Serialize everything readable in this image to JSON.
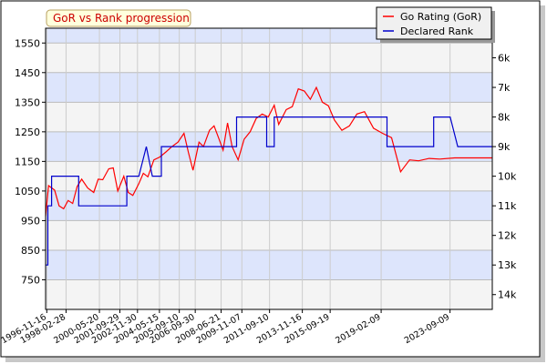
{
  "chart_data": {
    "type": "line",
    "title": "GoR vs Rank progression",
    "legend_placement": "top-right",
    "grid": true,
    "band_colors": {
      "light": "#f4f4f4",
      "blue": "#dde5fc"
    },
    "left_axis": {
      "ticks": [
        750,
        850,
        950,
        1050,
        1150,
        1250,
        1350,
        1450,
        1550
      ],
      "range": [
        650,
        1600
      ]
    },
    "right_axis": {
      "ticks": [
        {
          "label": "6k",
          "value": 1500
        },
        {
          "label": "7k",
          "value": 1400
        },
        {
          "label": "8k",
          "value": 1300
        },
        {
          "label": "9k",
          "value": 1200
        },
        {
          "label": "10k",
          "value": 1100
        },
        {
          "label": "11k",
          "value": 1000
        },
        {
          "label": "12k",
          "value": 900
        },
        {
          "label": "13k",
          "value": 800
        },
        {
          "label": "14k",
          "value": 700
        }
      ]
    },
    "x_axis": {
      "range": [
        1996.8,
        2026.5
      ],
      "tick_labels": [
        {
          "label": "1996-11-16",
          "year": 1996.88
        },
        {
          "label": "1998-02-28",
          "year": 1998.16
        },
        {
          "label": "2000-05-20",
          "year": 2000.38
        },
        {
          "label": "2001-09-29",
          "year": 2001.74
        },
        {
          "label": "2002-11-30",
          "year": 2002.91
        },
        {
          "label": "2004-05-15",
          "year": 2004.37
        },
        {
          "label": "2005-09-10",
          "year": 2005.69
        },
        {
          "label": "2006-09-30",
          "year": 2006.75
        },
        {
          "label": "2008-06-21",
          "year": 2008.47
        },
        {
          "label": "2009-11-07",
          "year": 2009.85
        },
        {
          "label": "2011-09-10",
          "year": 2011.69
        },
        {
          "label": "2013-11-16",
          "year": 2013.87
        },
        {
          "label": "2015-09-19",
          "year": 2015.72
        },
        {
          "label": "2019-02-09",
          "year": 2019.11
        },
        {
          "label": "2023-09-09",
          "year": 2023.69
        }
      ]
    },
    "series": [
      {
        "name": "Go Rating (GoR)",
        "color": "#ff0000",
        "points": [
          [
            1996.8,
            965
          ],
          [
            1997.0,
            1068
          ],
          [
            1997.4,
            1053
          ],
          [
            1997.7,
            1000
          ],
          [
            1998.0,
            990
          ],
          [
            1998.3,
            1018
          ],
          [
            1998.6,
            1008
          ],
          [
            1998.9,
            1065
          ],
          [
            1999.2,
            1090
          ],
          [
            1999.6,
            1060
          ],
          [
            2000.0,
            1045
          ],
          [
            2000.3,
            1090
          ],
          [
            2000.6,
            1088
          ],
          [
            2001.0,
            1125
          ],
          [
            2001.3,
            1128
          ],
          [
            2001.6,
            1050
          ],
          [
            2002.0,
            1100
          ],
          [
            2002.3,
            1045
          ],
          [
            2002.6,
            1035
          ],
          [
            2003.0,
            1075
          ],
          [
            2003.3,
            1110
          ],
          [
            2003.6,
            1098
          ],
          [
            2004.0,
            1155
          ],
          [
            2004.4,
            1165
          ],
          [
            2004.8,
            1182
          ],
          [
            2005.2,
            1200
          ],
          [
            2005.6,
            1215
          ],
          [
            2006.0,
            1245
          ],
          [
            2006.3,
            1180
          ],
          [
            2006.6,
            1120
          ],
          [
            2007.0,
            1215
          ],
          [
            2007.3,
            1200
          ],
          [
            2007.7,
            1255
          ],
          [
            2008.0,
            1270
          ],
          [
            2008.3,
            1230
          ],
          [
            2008.6,
            1188
          ],
          [
            2008.9,
            1280
          ],
          [
            2009.2,
            1200
          ],
          [
            2009.6,
            1155
          ],
          [
            2010.0,
            1225
          ],
          [
            2010.4,
            1250
          ],
          [
            2010.8,
            1295
          ],
          [
            2011.2,
            1310
          ],
          [
            2011.6,
            1300
          ],
          [
            2012.0,
            1340
          ],
          [
            2012.3,
            1275
          ],
          [
            2012.8,
            1325
          ],
          [
            2013.2,
            1335
          ],
          [
            2013.6,
            1395
          ],
          [
            2014.0,
            1388
          ],
          [
            2014.4,
            1360
          ],
          [
            2014.8,
            1400
          ],
          [
            2015.2,
            1350
          ],
          [
            2015.6,
            1338
          ],
          [
            2016.0,
            1290
          ],
          [
            2016.5,
            1255
          ],
          [
            2017.0,
            1270
          ],
          [
            2017.5,
            1310
          ],
          [
            2018.0,
            1318
          ],
          [
            2018.6,
            1262
          ],
          [
            2019.2,
            1245
          ],
          [
            2019.8,
            1230
          ],
          [
            2020.4,
            1115
          ],
          [
            2021.0,
            1155
          ],
          [
            2021.6,
            1152
          ],
          [
            2022.3,
            1160
          ],
          [
            2023.0,
            1158
          ],
          [
            2024.0,
            1162
          ],
          [
            2026.5,
            1162
          ]
        ]
      },
      {
        "name": "Declared Rank",
        "color": "#0000cc",
        "points": [
          [
            1996.8,
            800
          ],
          [
            1996.95,
            800
          ],
          [
            1996.95,
            1000
          ],
          [
            1997.2,
            1000
          ],
          [
            1997.2,
            1100
          ],
          [
            1999.0,
            1100
          ],
          [
            1999.0,
            1000
          ],
          [
            2002.2,
            1000
          ],
          [
            2002.2,
            1100
          ],
          [
            2003.0,
            1100
          ],
          [
            2003.5,
            1200
          ],
          [
            2003.9,
            1100
          ],
          [
            2004.5,
            1100
          ],
          [
            2004.5,
            1200
          ],
          [
            2009.5,
            1200
          ],
          [
            2009.5,
            1300
          ],
          [
            2011.5,
            1300
          ],
          [
            2011.5,
            1200
          ],
          [
            2012.0,
            1200
          ],
          [
            2012.0,
            1300
          ],
          [
            2019.5,
            1300
          ],
          [
            2019.5,
            1200
          ],
          [
            2022.6,
            1200
          ],
          [
            2022.6,
            1300
          ],
          [
            2023.7,
            1300
          ],
          [
            2024.2,
            1200
          ],
          [
            2026.5,
            1200
          ]
        ]
      }
    ]
  }
}
